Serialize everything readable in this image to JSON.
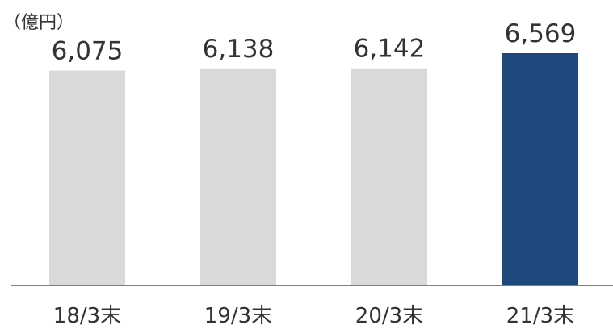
{
  "chart_data": {
    "type": "bar",
    "unit_label": "（億円）",
    "categories": [
      "18/3末",
      "19/3末",
      "20/3末",
      "21/3末"
    ],
    "values": [
      6075,
      6138,
      6142,
      6569
    ],
    "value_labels": [
      "6,075",
      "6,138",
      "6,142",
      "6,569"
    ],
    "highlight_index": 3,
    "colors": {
      "bar": "#d9d9d9",
      "highlight": "#1f497d",
      "axis": "#7f7f7f",
      "text": "#333333"
    },
    "grid": false,
    "legend": "none"
  }
}
